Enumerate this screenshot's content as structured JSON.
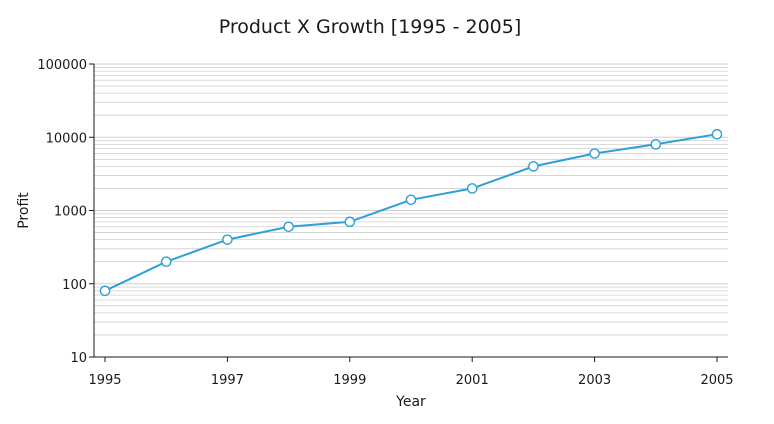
{
  "chart_data": {
    "type": "line",
    "title": "Product X Growth [1995 - 2005]",
    "xlabel": "Year",
    "ylabel": "Profit",
    "y_scale": "log",
    "xlim": [
      1995,
      2005
    ],
    "ylim": [
      10,
      100000
    ],
    "x_ticks": [
      "1995",
      "1997",
      "1999",
      "2001",
      "2003",
      "2005"
    ],
    "y_ticks": [
      "10",
      "100",
      "1000",
      "10000",
      "100000"
    ],
    "grid": true,
    "series": [
      {
        "x": [
          1995,
          1996,
          1997,
          1998,
          1999,
          2000,
          2001,
          2002,
          2003,
          2004,
          2005
        ],
        "values": [
          80,
          200,
          400,
          600,
          700,
          1400,
          2000,
          4000,
          6000,
          8000,
          11000
        ]
      }
    ],
    "colors": {
      "line": "#2E9FD8",
      "marker_fill": "#ffffff",
      "grid": "#cfcfcf",
      "axis": "#1a1a1a"
    }
  }
}
